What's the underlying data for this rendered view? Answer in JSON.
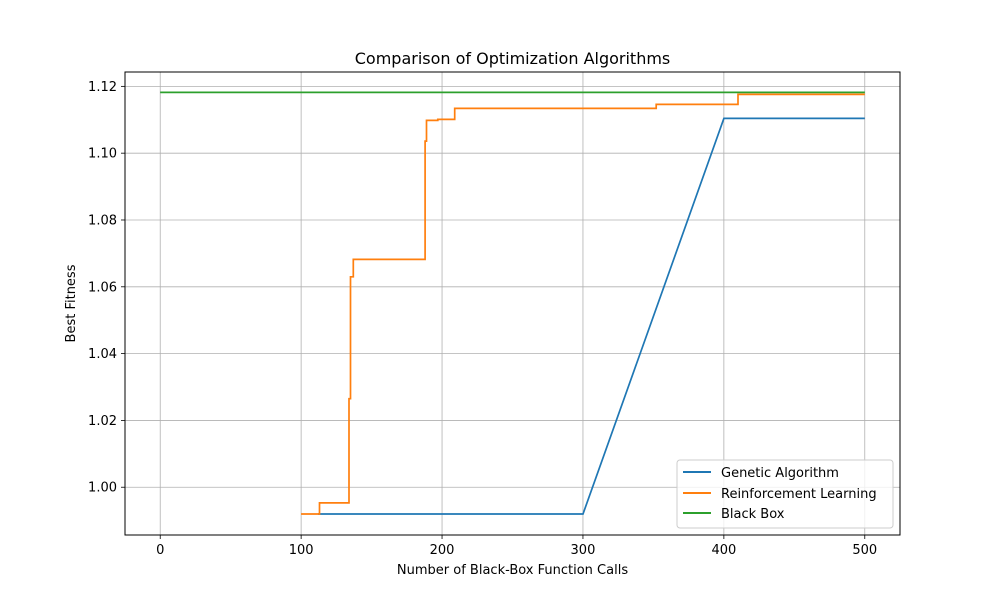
{
  "chart_data": {
    "type": "line",
    "title": "Comparison of Optimization Algorithms",
    "xlabel": "Number of Black-Box Function Calls",
    "ylabel": "Best Fitness",
    "xlim": [
      -25,
      525
    ],
    "ylim": [
      0.9857,
      1.1243
    ],
    "xticks": [
      0,
      100,
      200,
      300,
      400,
      500
    ],
    "xtick_labels": [
      "0",
      "100",
      "200",
      "300",
      "400",
      "500"
    ],
    "yticks": [
      1.0,
      1.02,
      1.04,
      1.06,
      1.08,
      1.1,
      1.12
    ],
    "ytick_labels": [
      "1.00",
      "1.02",
      "1.04",
      "1.06",
      "1.08",
      "1.10",
      "1.12"
    ],
    "grid": true,
    "legend_position": "lower-right",
    "series": [
      {
        "name": "Genetic Algorithm",
        "color": "#1f77b4",
        "step": false,
        "points": [
          [
            112,
            0.992
          ],
          [
            300,
            0.992
          ],
          [
            400,
            1.1104
          ],
          [
            500,
            1.1104
          ]
        ]
      },
      {
        "name": "Reinforcement Learning",
        "color": "#ff7f0e",
        "step": true,
        "points": [
          [
            100,
            0.992
          ],
          [
            113,
            0.9953
          ],
          [
            134,
            1.0265
          ],
          [
            135,
            1.063
          ],
          [
            137,
            1.0682
          ],
          [
            188,
            1.1036
          ],
          [
            189,
            1.1098
          ],
          [
            197,
            1.1101
          ],
          [
            209,
            1.1134
          ],
          [
            352,
            1.1146
          ],
          [
            410,
            1.1176
          ],
          [
            500,
            1.1176
          ]
        ]
      },
      {
        "name": "Black Box",
        "color": "#2ca02c",
        "step": false,
        "points": [
          [
            0,
            1.1182
          ],
          [
            500,
            1.1182
          ]
        ]
      }
    ]
  }
}
